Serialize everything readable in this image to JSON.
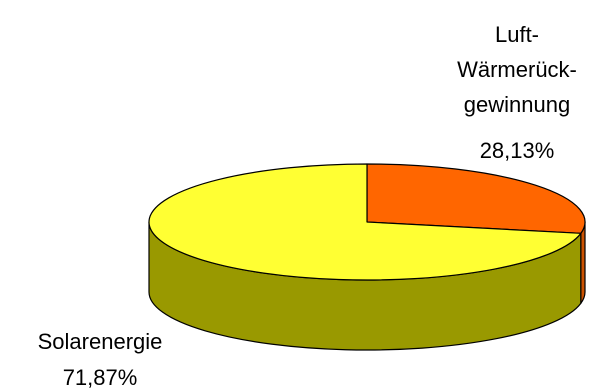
{
  "chart_data": {
    "type": "pie",
    "style": "3d",
    "slices": [
      {
        "label_lines": [
          "Luft-",
          "Wärmerück-",
          "gewinnung"
        ],
        "value_label": "28,13%",
        "value": 28.13,
        "color": "#FF6600",
        "side_color": "#CC5200"
      },
      {
        "label_lines": [
          "Solarenergie"
        ],
        "value_label": "71,87%",
        "value": 71.87,
        "color": "#FFFF33",
        "side_color": "#999900"
      }
    ]
  }
}
